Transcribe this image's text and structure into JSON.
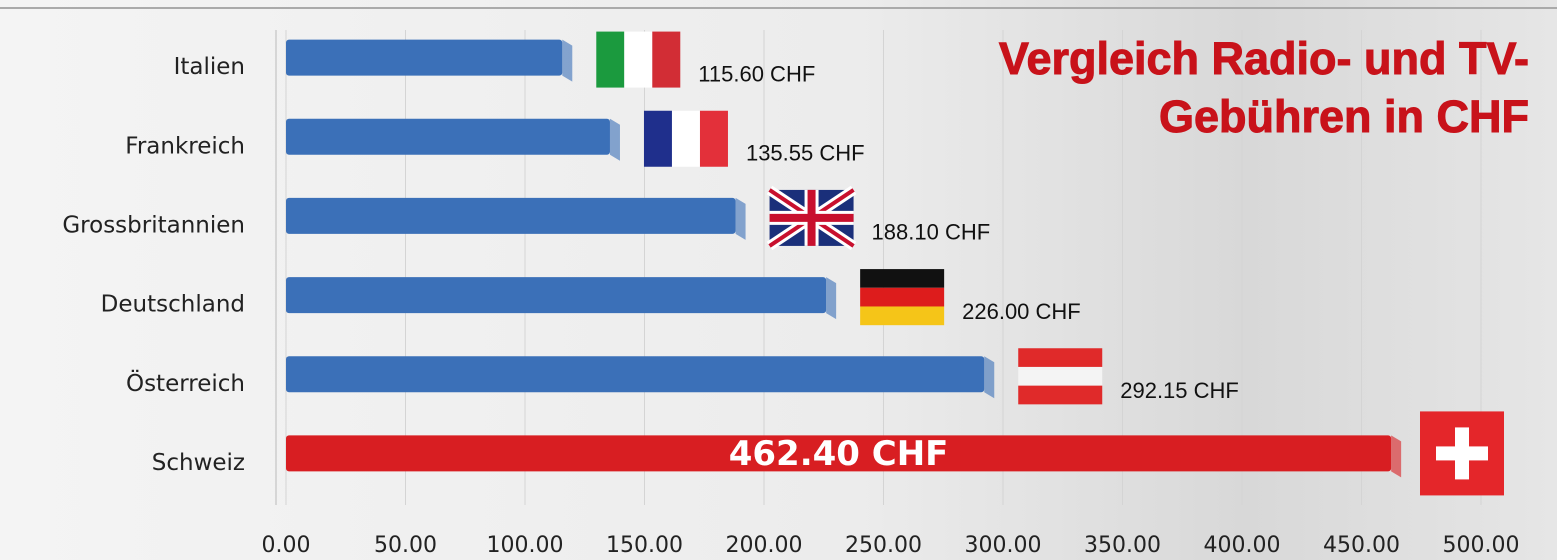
{
  "chart_data": {
    "type": "bar",
    "orientation": "horizontal",
    "title": "Vergleich Radio- und TV-Gebühren in CHF",
    "categories": [
      "Italien",
      "Frankreich",
      "Grossbritannien",
      "Deutschland",
      "Österreich",
      "Schweiz"
    ],
    "values": [
      115.6,
      135.55,
      188.1,
      226,
      292.15,
      462.4
    ],
    "value_labels": [
      "115.60 CHF",
      "135.55 CHF",
      "188.10 CHF",
      "226.00 CHF",
      "292.15 CHF",
      "462.40 CHF"
    ],
    "colors": [
      "#3b70b8",
      "#3b70b8",
      "#3b70b8",
      "#3b70b8",
      "#3b70b8",
      "#d81e22"
    ],
    "xlim": [
      0,
      500
    ],
    "xticks": [
      {
        "value": 0,
        "label": "0.00"
      },
      {
        "value": 50,
        "label": "50.00"
      },
      {
        "value": 100,
        "label": "100.00"
      },
      {
        "value": 150,
        "label": "150.00"
      },
      {
        "value": 200,
        "label": "200.00"
      },
      {
        "value": 250,
        "label": "250.00"
      },
      {
        "value": 300,
        "label": "300.00"
      },
      {
        "value": 350,
        "label": "350.00"
      },
      {
        "value": 400,
        "label": "400.00"
      },
      {
        "value": 450,
        "label": "450.00"
      },
      {
        "value": 500,
        "label": "500.00"
      }
    ],
    "grid": true
  }
}
